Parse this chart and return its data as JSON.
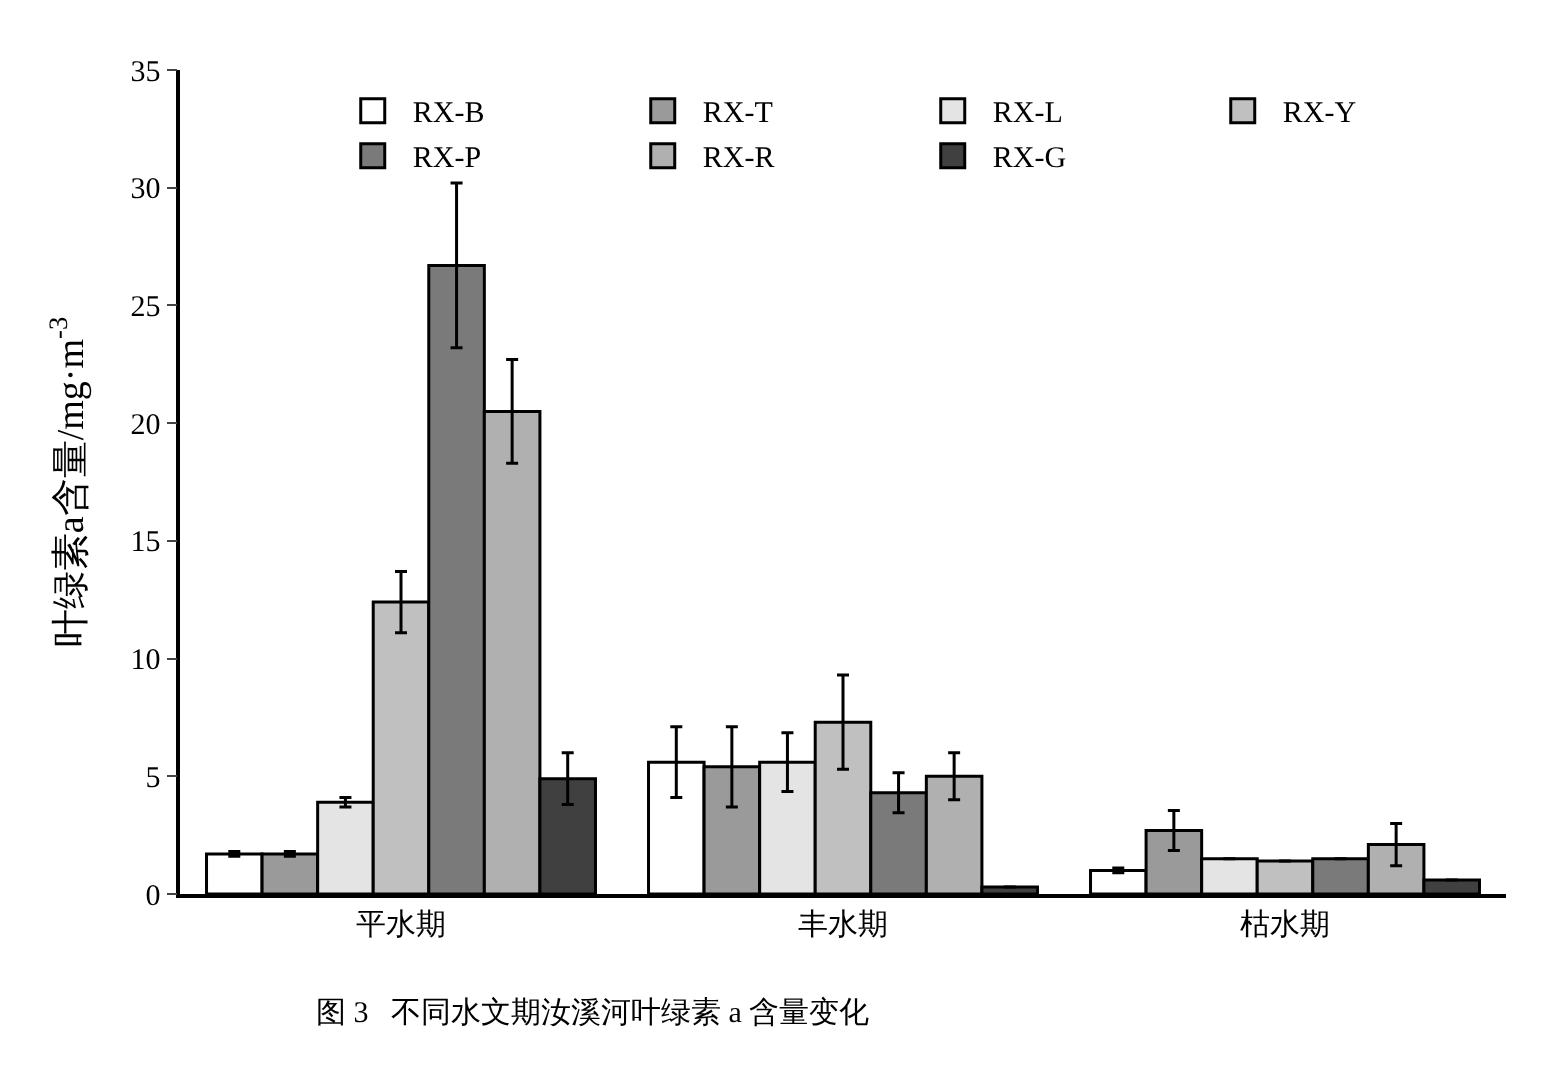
{
  "chart_data": {
    "type": "bar",
    "ylabel": "叶绿素a含量/mg·m$^{-3}$",
    "categories": [
      "平水期",
      "丰水期",
      "枯水期"
    ],
    "series": [
      {
        "name": "RX-B",
        "color": "#ffffff",
        "values": [
          1.7,
          5.6,
          1.0
        ],
        "errors": [
          0.1,
          1.5,
          0.1
        ]
      },
      {
        "name": "RX-T",
        "color": "#9a9a9a",
        "values": [
          1.7,
          5.4,
          2.7
        ],
        "errors": [
          0.1,
          1.7,
          0.85
        ]
      },
      {
        "name": "RX-L",
        "color": "#e4e4e4",
        "values": [
          3.9,
          5.6,
          1.5
        ],
        "errors": [
          0.2,
          1.25,
          null
        ]
      },
      {
        "name": "RX-Y",
        "color": "#c0c0c0",
        "values": [
          12.4,
          7.3,
          1.4
        ],
        "errors": [
          1.3,
          2.0,
          null
        ]
      },
      {
        "name": "RX-P",
        "color": "#7a7a7a",
        "values": [
          26.7,
          4.3,
          1.5
        ],
        "errors": [
          3.5,
          0.85,
          null
        ]
      },
      {
        "name": "RX-R",
        "color": "#b0b0b0",
        "values": [
          20.5,
          5.0,
          2.1
        ],
        "errors": [
          2.2,
          1.0,
          0.9
        ]
      },
      {
        "name": "RX-G",
        "color": "#404040",
        "values": [
          4.9,
          0.3,
          0.6
        ],
        "errors": [
          1.1,
          null,
          null
        ]
      }
    ],
    "ylim": [
      0,
      35
    ],
    "yticks": [
      0,
      5,
      10,
      15,
      20,
      25,
      30,
      35
    ],
    "grid": false,
    "legend": "top right",
    "annotations": [
      "图 3   不同水文期汝溪河叶绿素 a 含量变化"
    ]
  }
}
